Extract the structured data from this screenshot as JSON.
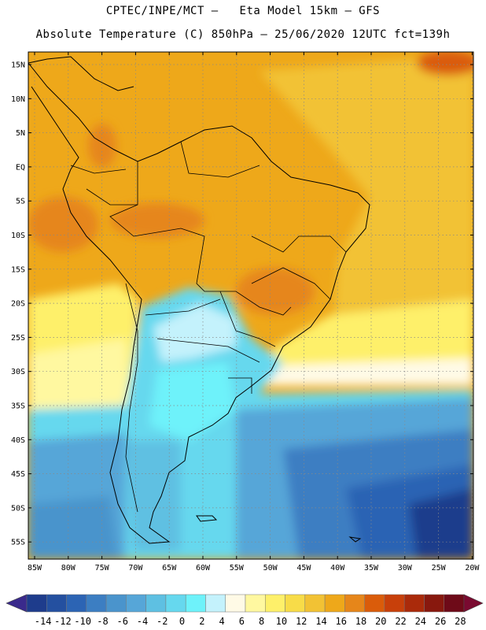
{
  "title_line1": "CPTEC/INPE/MCT –   Eta Model 15km – GFS",
  "title_line2": "Absolute Temperature (C) 850hPa – 25/06/2020 12UTC fct=139h",
  "lat_labels": [
    "15N",
    "10N",
    "5N",
    "EQ",
    "5S",
    "10S",
    "15S",
    "20S",
    "25S",
    "30S",
    "35S",
    "40S",
    "45S",
    "50S",
    "55S"
  ],
  "lon_labels": [
    "85W",
    "80W",
    "75W",
    "70W",
    "65W",
    "60W",
    "55W",
    "50W",
    "45W",
    "40W",
    "35W",
    "30W",
    "25W",
    "20W"
  ],
  "colorbar": {
    "colors": [
      "#1e3c8c",
      "#2450a0",
      "#2c64b4",
      "#3c7ec2",
      "#4a94cc",
      "#56a6d8",
      "#5ec0e2",
      "#66d8ee",
      "#6ef2fa",
      "#c4f2fc",
      "#fffae6",
      "#fff8a0",
      "#fef06a",
      "#f8dc48",
      "#f2c234",
      "#eea81a",
      "#e6861a",
      "#da5c0a",
      "#c8400a",
      "#aa2a0a",
      "#88180e",
      "#6e0a18"
    ],
    "labels": [
      "-14",
      "-12",
      "-10",
      "-8",
      "-6",
      "-4",
      "-2",
      "0",
      "2",
      "4",
      "6",
      "8",
      "10",
      "12",
      "14",
      "16",
      "18",
      "20",
      "22",
      "24",
      "26",
      "28"
    ]
  },
  "colors": {
    "warm_orange": "#eea81a",
    "deep_orange": "#e6861a",
    "gold": "#f2c234",
    "yellow": "#fef06a",
    "cyan": "#66d8ee",
    "blue": "#3c7ec2",
    "navy": "#1e3c8c"
  }
}
